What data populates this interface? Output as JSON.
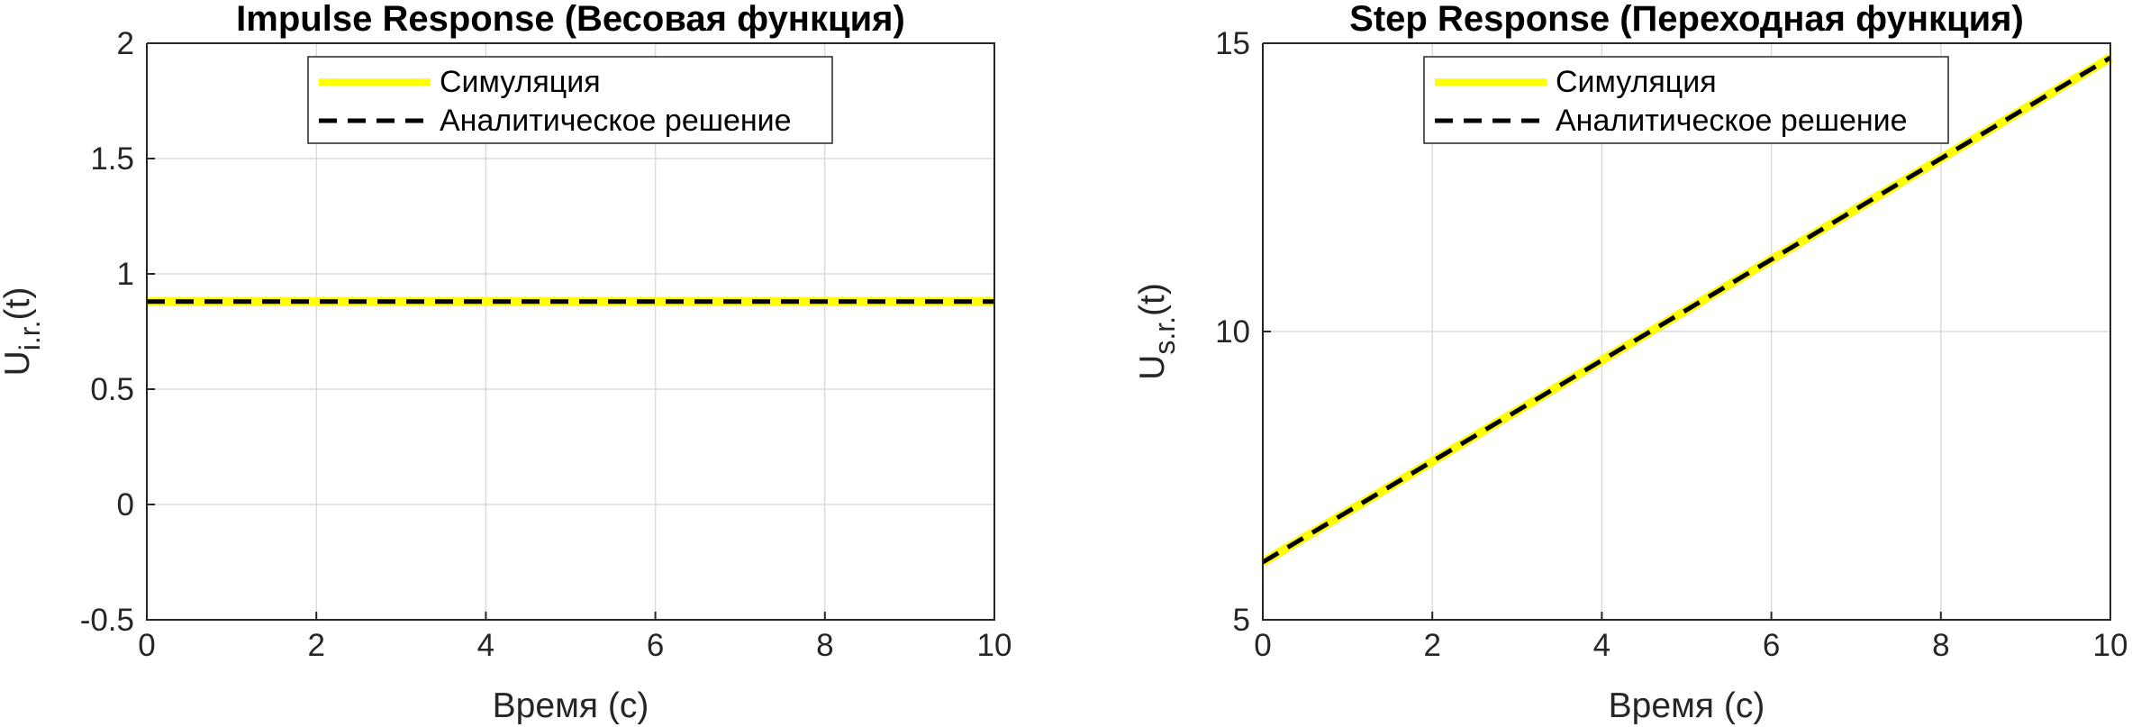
{
  "chart_data": [
    {
      "type": "line",
      "title": "Impulse Response (Весовая функция)",
      "xlabel": "Время (с)",
      "ylabel": {
        "main": "U",
        "sub": "i.r.",
        "suffix": "(t)"
      },
      "xlim": [
        0,
        10
      ],
      "ylim": [
        -0.5,
        2
      ],
      "xticks": [
        0,
        2,
        4,
        6,
        8,
        10
      ],
      "xtick_labels": [
        "0",
        "2",
        "4",
        "6",
        "8",
        "10"
      ],
      "yticks": [
        -0.5,
        0,
        0.5,
        1,
        1.5,
        2
      ],
      "ytick_labels": [
        "-0.5",
        "0",
        "0.5",
        "1",
        "1.5",
        "2"
      ],
      "grid": true,
      "legend_position": "top-center",
      "series": [
        {
          "name": "Симуляция",
          "style": "solid",
          "color": "#ffff00",
          "x": [
            0,
            10
          ],
          "y": [
            0.88,
            0.88
          ]
        },
        {
          "name": "Аналитическое решение",
          "style": "dashed",
          "color": "#000000",
          "x": [
            0,
            10
          ],
          "y": [
            0.88,
            0.88
          ]
        }
      ]
    },
    {
      "type": "line",
      "title": "Step Response (Переходная функция)",
      "xlabel": "Время (с)",
      "ylabel": {
        "main": "U",
        "sub": "s.r.",
        "suffix": "(t)"
      },
      "xlim": [
        0,
        10
      ],
      "ylim": [
        5,
        15
      ],
      "xticks": [
        0,
        2,
        4,
        6,
        8,
        10
      ],
      "xtick_labels": [
        "0",
        "2",
        "4",
        "6",
        "8",
        "10"
      ],
      "yticks": [
        5,
        10,
        15
      ],
      "ytick_labels": [
        "5",
        "10",
        "15"
      ],
      "grid": true,
      "legend_position": "top-center",
      "series": [
        {
          "name": "Симуляция",
          "style": "solid",
          "color": "#ffff00",
          "x": [
            0,
            10
          ],
          "y": [
            6.0,
            14.75
          ]
        },
        {
          "name": "Аналитическое решение",
          "style": "dashed",
          "color": "#000000",
          "x": [
            0,
            10
          ],
          "y": [
            6.0,
            14.75
          ]
        }
      ]
    }
  ]
}
